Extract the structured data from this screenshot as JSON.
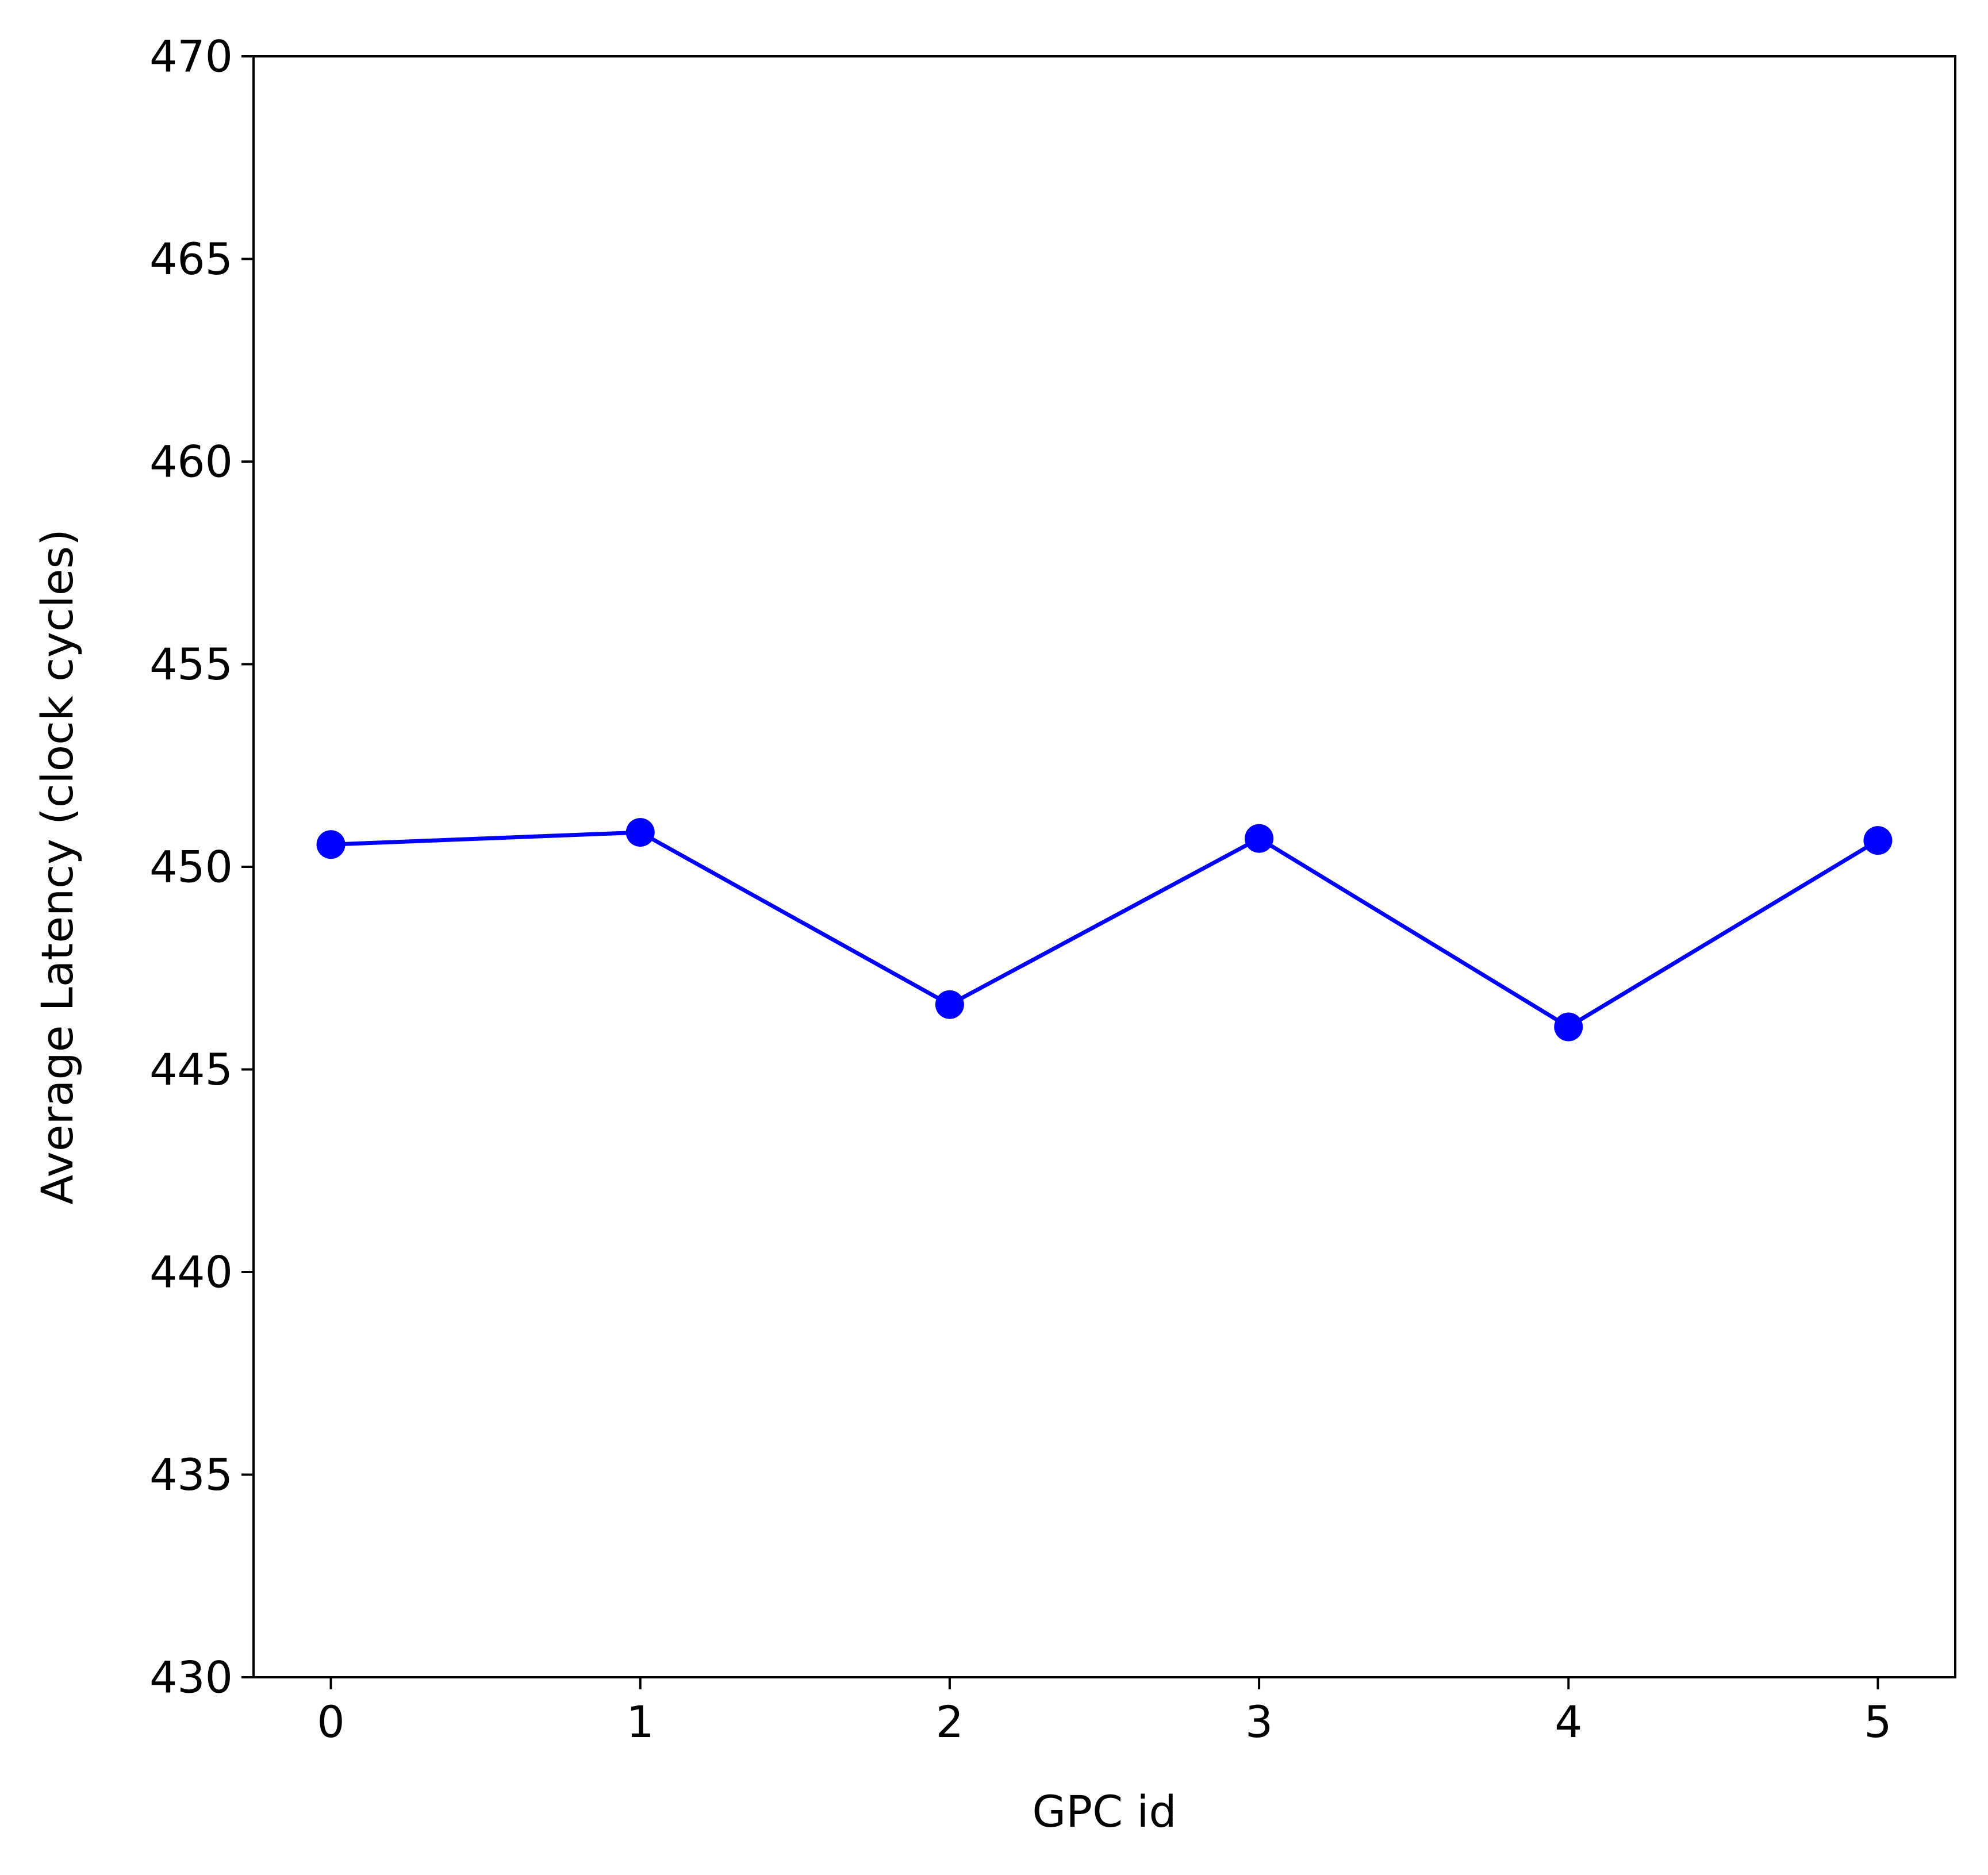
{
  "chart_data": {
    "type": "line",
    "title": "",
    "xlabel": "GPC id",
    "ylabel": "Average Latency (clock cycles)",
    "x": [
      0,
      1,
      2,
      3,
      4,
      5
    ],
    "xlim": [
      -0.25,
      5.25
    ],
    "ylim": [
      430,
      470
    ],
    "xticks": [
      0,
      1,
      2,
      3,
      4,
      5
    ],
    "yticks": [
      430,
      435,
      440,
      445,
      450,
      455,
      460,
      465,
      470
    ],
    "grid": false,
    "legend": "none",
    "series": [
      {
        "values": [
          450.55,
          450.85,
          446.6,
          450.7,
          446.05,
          450.65
        ],
        "color": "#0000ff",
        "marker": "circle"
      }
    ]
  }
}
